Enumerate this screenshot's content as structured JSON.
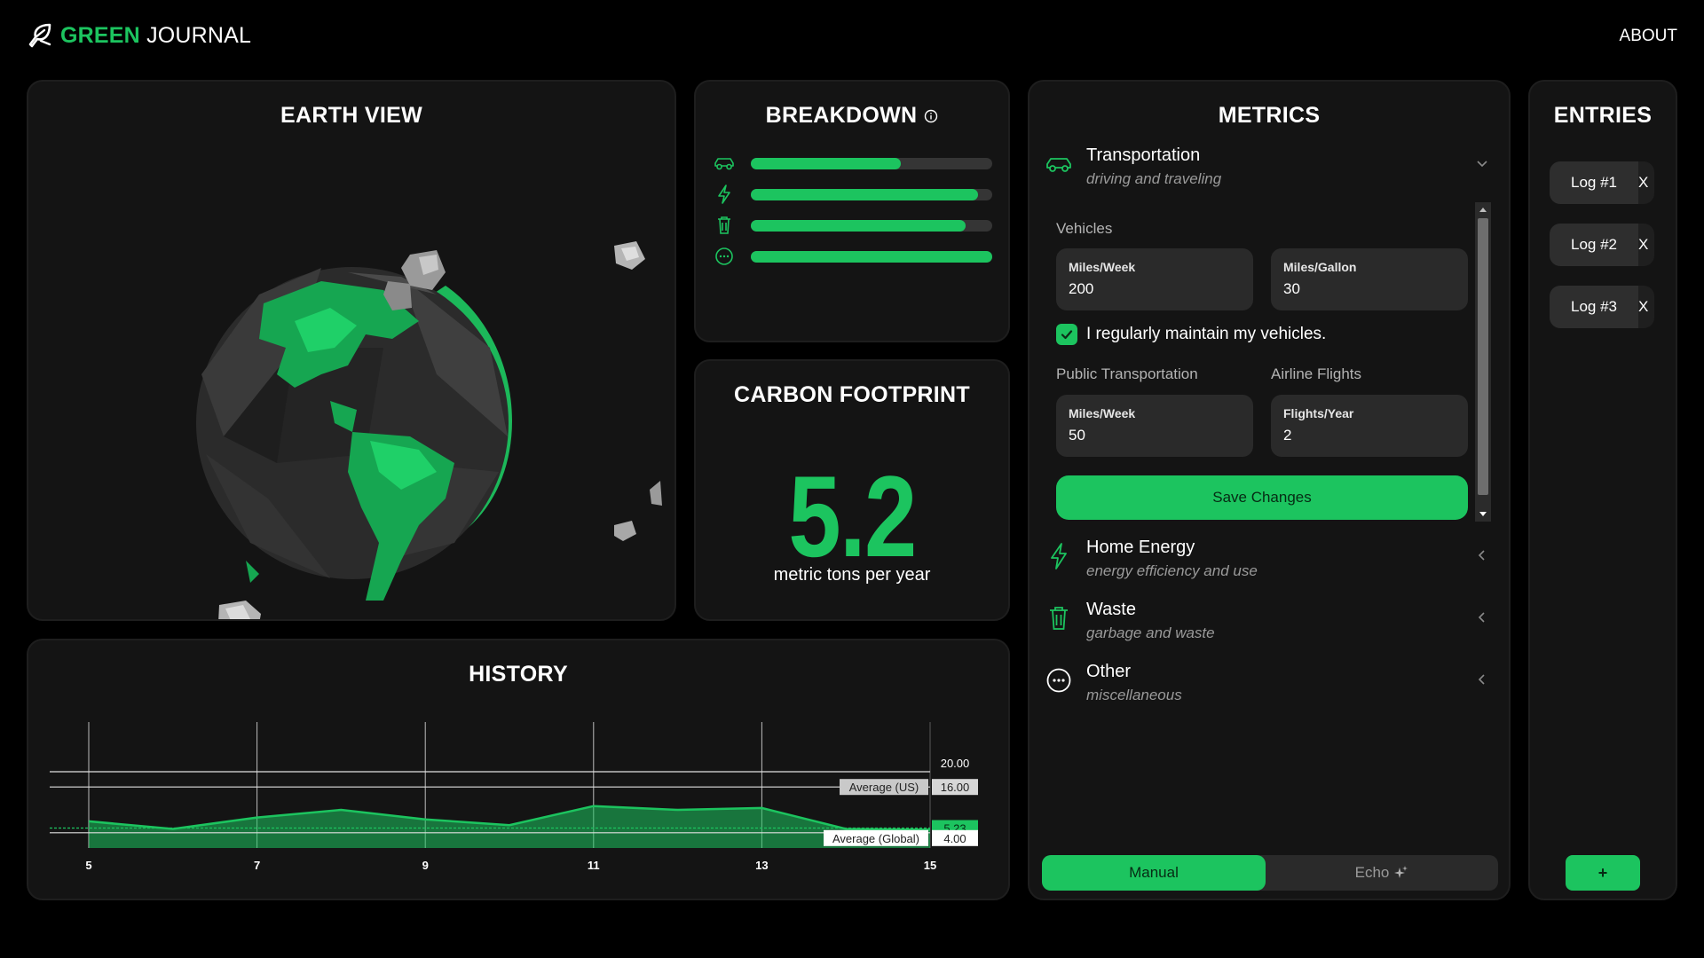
{
  "header": {
    "logo_green": "GREEN",
    "logo_white": "JOURNAL",
    "about_label": "ABOUT"
  },
  "earth": {
    "title": "EARTH VIEW"
  },
  "breakdown": {
    "title": "BREAKDOWN",
    "items": [
      {
        "icon": "car-icon",
        "fraction": 0.62
      },
      {
        "icon": "lightning-icon",
        "fraction": 0.94
      },
      {
        "icon": "trash-icon",
        "fraction": 0.89
      },
      {
        "icon": "more-icon",
        "fraction": 1.0
      }
    ]
  },
  "carbon": {
    "title": "CARBON FOOTPRINT",
    "value": "5.2",
    "unit": "metric tons per year"
  },
  "history": {
    "title": "HISTORY",
    "avg_us_label": "Average (US)",
    "avg_global_label": "Average (Global)"
  },
  "chart_data": {
    "type": "area",
    "x": [
      5,
      6,
      7,
      8,
      9,
      10,
      11,
      12,
      13,
      14,
      15
    ],
    "series": [
      {
        "values": [
          7.0,
          5.0,
          8.0,
          10.0,
          7.5,
          6.0,
          11.0,
          10.0,
          10.5,
          5.0,
          4.8
        ]
      }
    ],
    "x_ticks": [
      5,
      7,
      9,
      11,
      13,
      15
    ],
    "ylim": [
      0,
      20
    ],
    "y_labels": [
      "20.00",
      "16.00",
      "5.23",
      "4.00"
    ],
    "reference_lines": [
      {
        "label": "Average (US)",
        "value": 16.0,
        "value_text": "16.00"
      },
      {
        "label": "Average (Global)",
        "value": 4.0,
        "value_text": "4.00"
      },
      {
        "value": 5.23,
        "value_text": "5.23"
      },
      {
        "value": 20.0,
        "value_text": "20.00"
      }
    ],
    "colors": {
      "fill": "#1cc45f",
      "line": "#1cc45f"
    }
  },
  "metrics": {
    "title": "METRICS",
    "categories": [
      {
        "title": "Transportation",
        "subtitle": "driving and traveling",
        "icon": "car-icon",
        "expanded": true
      },
      {
        "title": "Home Energy",
        "subtitle": "energy efficiency and use",
        "icon": "lightning-icon"
      },
      {
        "title": "Waste",
        "subtitle": "garbage and waste",
        "icon": "trash-icon"
      },
      {
        "title": "Other",
        "subtitle": "miscellaneous",
        "icon": "more-icon"
      }
    ],
    "vehicles": {
      "label": "Vehicles",
      "miles_week_label": "Miles/Week",
      "miles_week_value": "200",
      "mpg_label": "Miles/Gallon",
      "mpg_value": "30",
      "maintain_label": "I regularly maintain my vehicles.",
      "maintain_checked": true
    },
    "public_transport": {
      "label": "Public Transportation",
      "miles_week_label": "Miles/Week",
      "miles_week_value": "50"
    },
    "flights": {
      "label": "Airline Flights",
      "flights_label": "Flights/Year",
      "flights_value": "2"
    },
    "save_label": "Save Changes",
    "mode_manual": "Manual",
    "mode_echo": "Echo"
  },
  "entries": {
    "title": "ENTRIES",
    "logs": [
      "Log #1",
      "Log #2",
      "Log #3"
    ],
    "remove_label": "X",
    "add_label": "+"
  },
  "colors": {
    "accent": "#1cc45f",
    "panel": "#141414",
    "background": "#000000"
  }
}
